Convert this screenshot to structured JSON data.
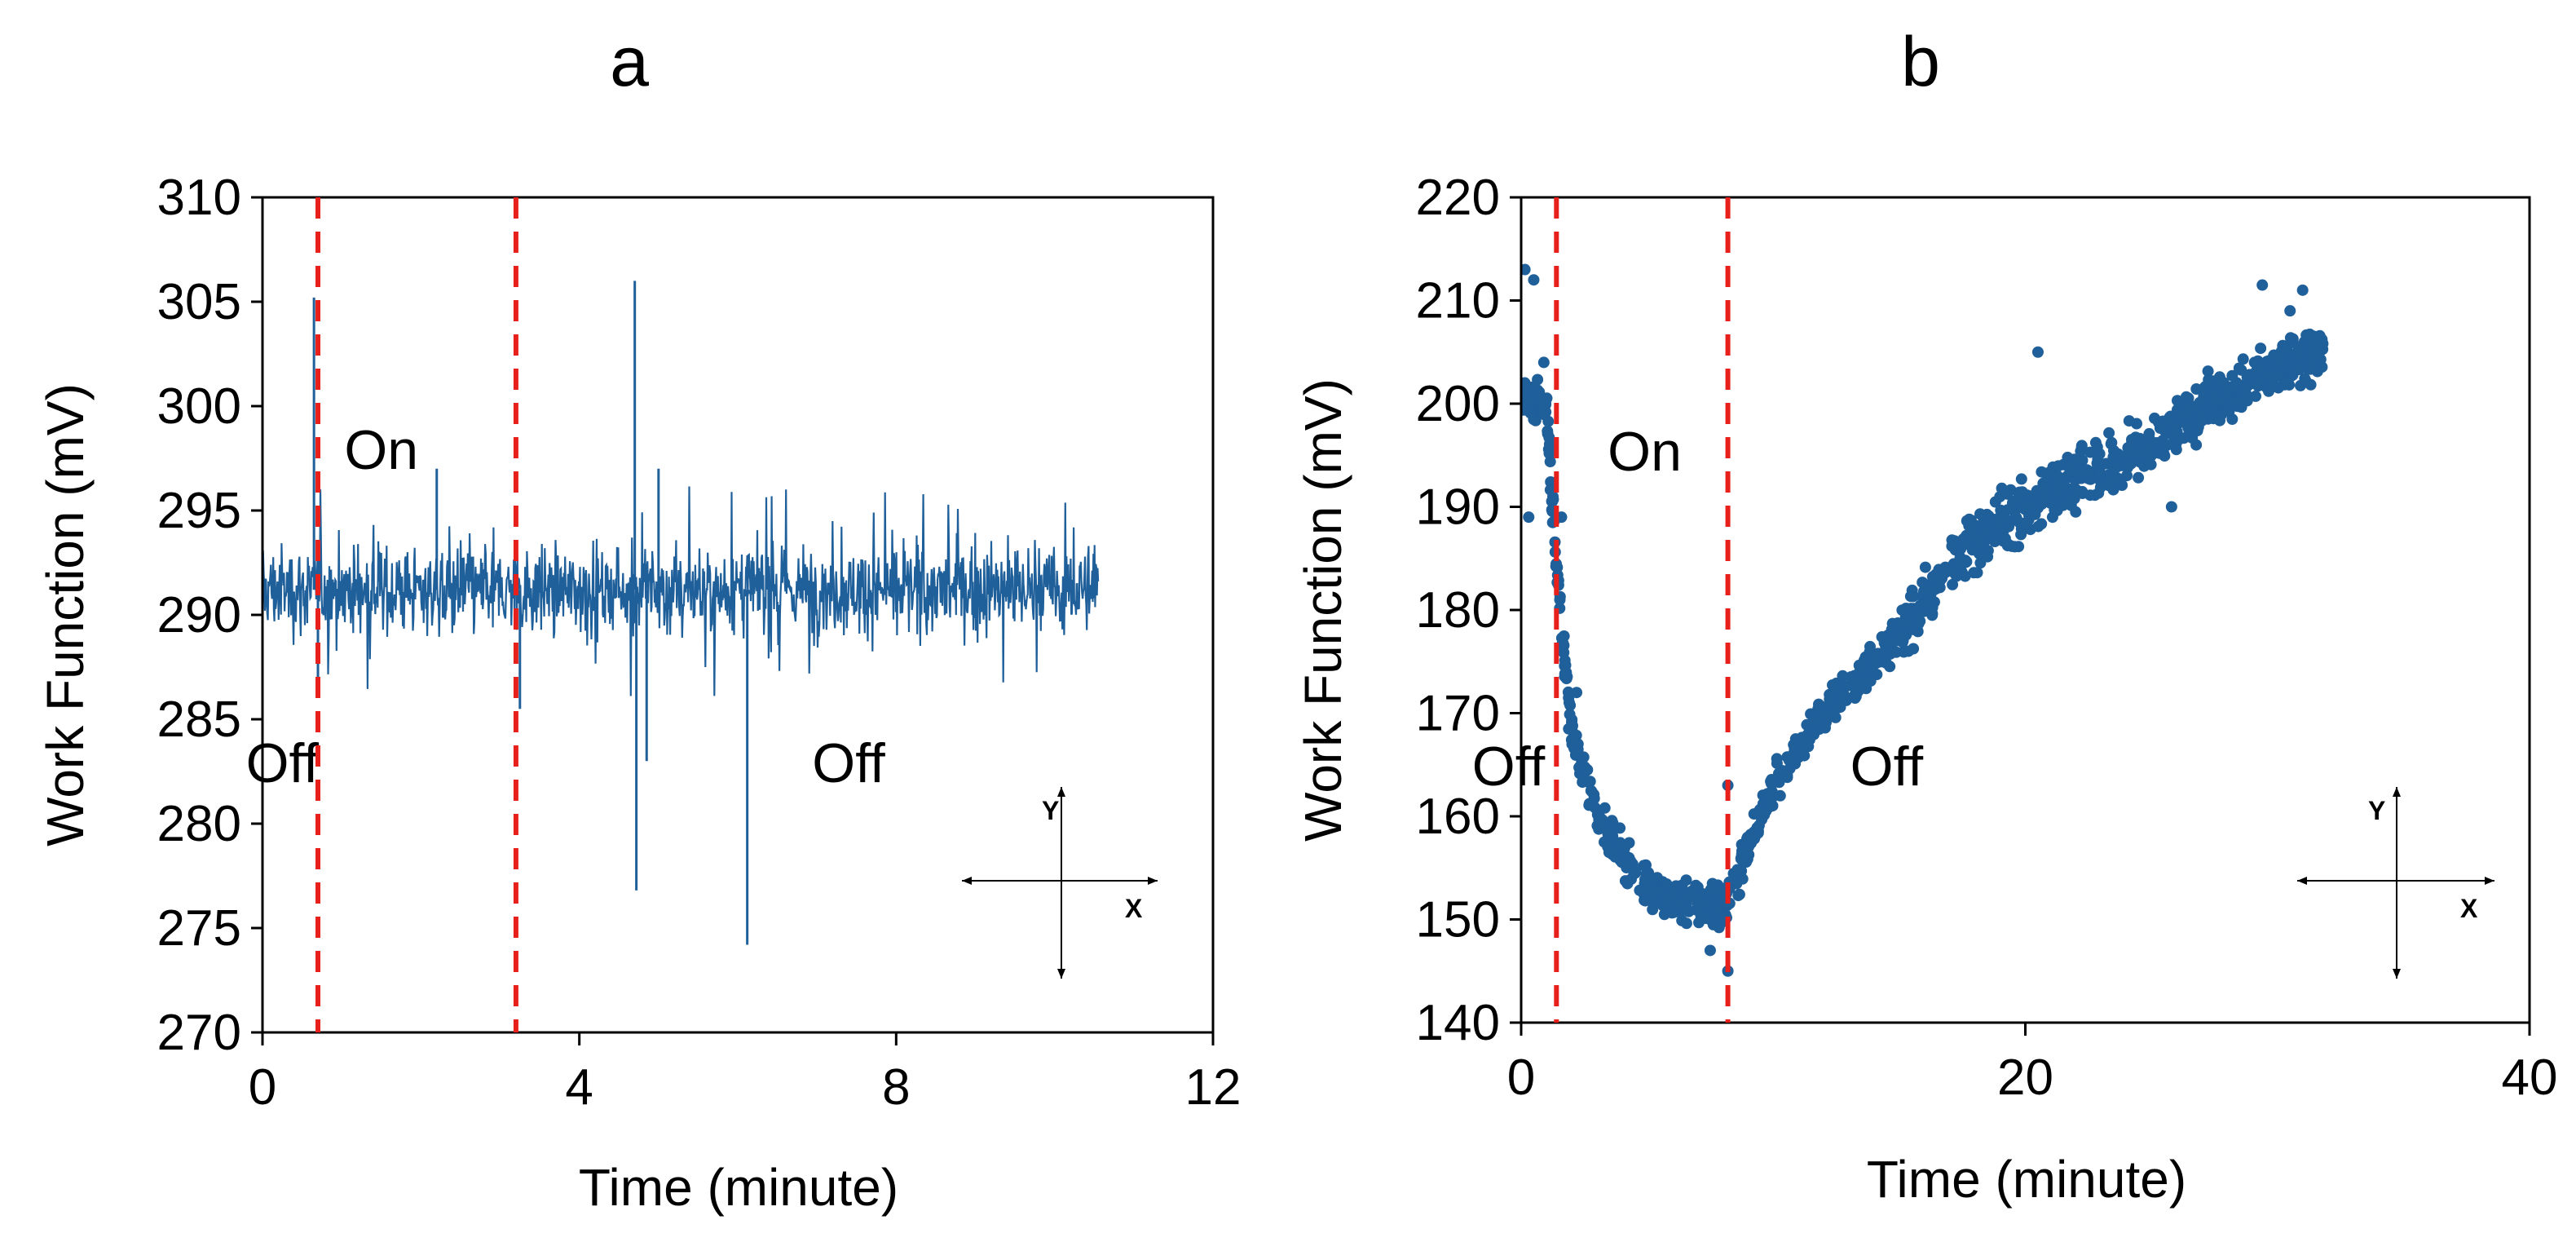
{
  "chart_data": [
    {
      "type": "line",
      "panel_label": "a",
      "xlabel": "Time (minute)",
      "ylabel": "Work Function (mV)",
      "xlim": [
        0,
        12
      ],
      "ylim": [
        270,
        310
      ],
      "xticks": [
        0,
        4,
        8,
        12
      ],
      "yticks": [
        270,
        275,
        280,
        285,
        290,
        295,
        300,
        305,
        310
      ],
      "xtick_labels": [
        "0",
        "4",
        "8",
        "12"
      ],
      "ytick_labels": [
        "270",
        "275",
        "280",
        "285",
        "290",
        "295",
        "300",
        "305",
        "310"
      ],
      "vlines": [
        0.7,
        3.2
      ],
      "annotations": [
        {
          "text": "Off",
          "x": 0.25,
          "y": 282.0
        },
        {
          "text": "On",
          "x": 1.5,
          "y": 297.0
        },
        {
          "text": "Off",
          "x": 7.4,
          "y": 282.0
        }
      ],
      "compass": {
        "y_label": "Y",
        "x_label": "X"
      },
      "series": [
        {
          "name": "Work Function",
          "color": "#1f5f9a",
          "baseline": 291.2,
          "noise": 3.2,
          "x_end": 10.55,
          "spikes": [
            [
              0.65,
              305.2
            ],
            [
              0.7,
              286.5
            ],
            [
              3.25,
              285.5
            ],
            [
              4.7,
              306.0
            ],
            [
              4.72,
              276.8
            ],
            [
              4.85,
              283.0
            ],
            [
              6.12,
              274.2
            ],
            [
              6.15,
              291.0
            ],
            [
              2.2,
              297.0
            ],
            [
              5.0,
              297.0
            ]
          ]
        }
      ]
    },
    {
      "type": "scatter",
      "panel_label": "b",
      "xlabel": "Time (minute)",
      "ylabel": "Work Function (mV)",
      "xlim": [
        0,
        40
      ],
      "ylim": [
        140,
        220
      ],
      "xticks": [
        0,
        20,
        40
      ],
      "yticks": [
        140,
        150,
        160,
        170,
        180,
        190,
        200,
        210,
        220
      ],
      "xtick_labels": [
        "0",
        "20",
        "40"
      ],
      "ytick_labels": [
        "140",
        "150",
        "160",
        "170",
        "180",
        "190",
        "200",
        "210",
        "220"
      ],
      "vlines": [
        1.4,
        8.2
      ],
      "annotations": [
        {
          "text": "Off",
          "x": -0.5,
          "y": 163.0
        },
        {
          "text": "On",
          "x": 4.9,
          "y": 193.5
        },
        {
          "text": "Off",
          "x": 14.5,
          "y": 163.0
        }
      ],
      "compass": {
        "y_label": "Y",
        "x_label": "X"
      },
      "series": [
        {
          "name": "Work Function",
          "color": "#1f5f9a",
          "curve": [
            [
              0.0,
              201
            ],
            [
              1.0,
              200
            ],
            [
              1.4,
              184
            ],
            [
              2.0,
              168
            ],
            [
              3.0,
              160
            ],
            [
              4.0,
              156
            ],
            [
              5.0,
              153
            ],
            [
              6.0,
              152
            ],
            [
              7.0,
              151.5
            ],
            [
              8.0,
              151
            ],
            [
              8.2,
              152
            ],
            [
              9.0,
              157
            ],
            [
              10.0,
              163
            ],
            [
              12.0,
              170
            ],
            [
              14.0,
              175
            ],
            [
              16.0,
              181
            ],
            [
              18.0,
              187
            ],
            [
              20.0,
              190
            ],
            [
              22.0,
              193
            ],
            [
              24.0,
              195
            ],
            [
              26.0,
              198
            ],
            [
              28.0,
              201
            ],
            [
              30.0,
              203.5
            ],
            [
              31.8,
              205
            ]
          ],
          "outliers": [
            [
              0.15,
              213
            ],
            [
              0.5,
              212
            ],
            [
              0.3,
              189
            ],
            [
              0.9,
              204
            ],
            [
              1.6,
              189
            ],
            [
              2.2,
              172
            ],
            [
              7.5,
              147
            ],
            [
              8.2,
              145
            ],
            [
              8.2,
              163
            ],
            [
              20.5,
              205
            ],
            [
              25.8,
              190
            ],
            [
              29.4,
              211.5
            ],
            [
              30.5,
              209
            ],
            [
              31.0,
              211
            ]
          ],
          "n_points": 1400
        }
      ]
    }
  ]
}
